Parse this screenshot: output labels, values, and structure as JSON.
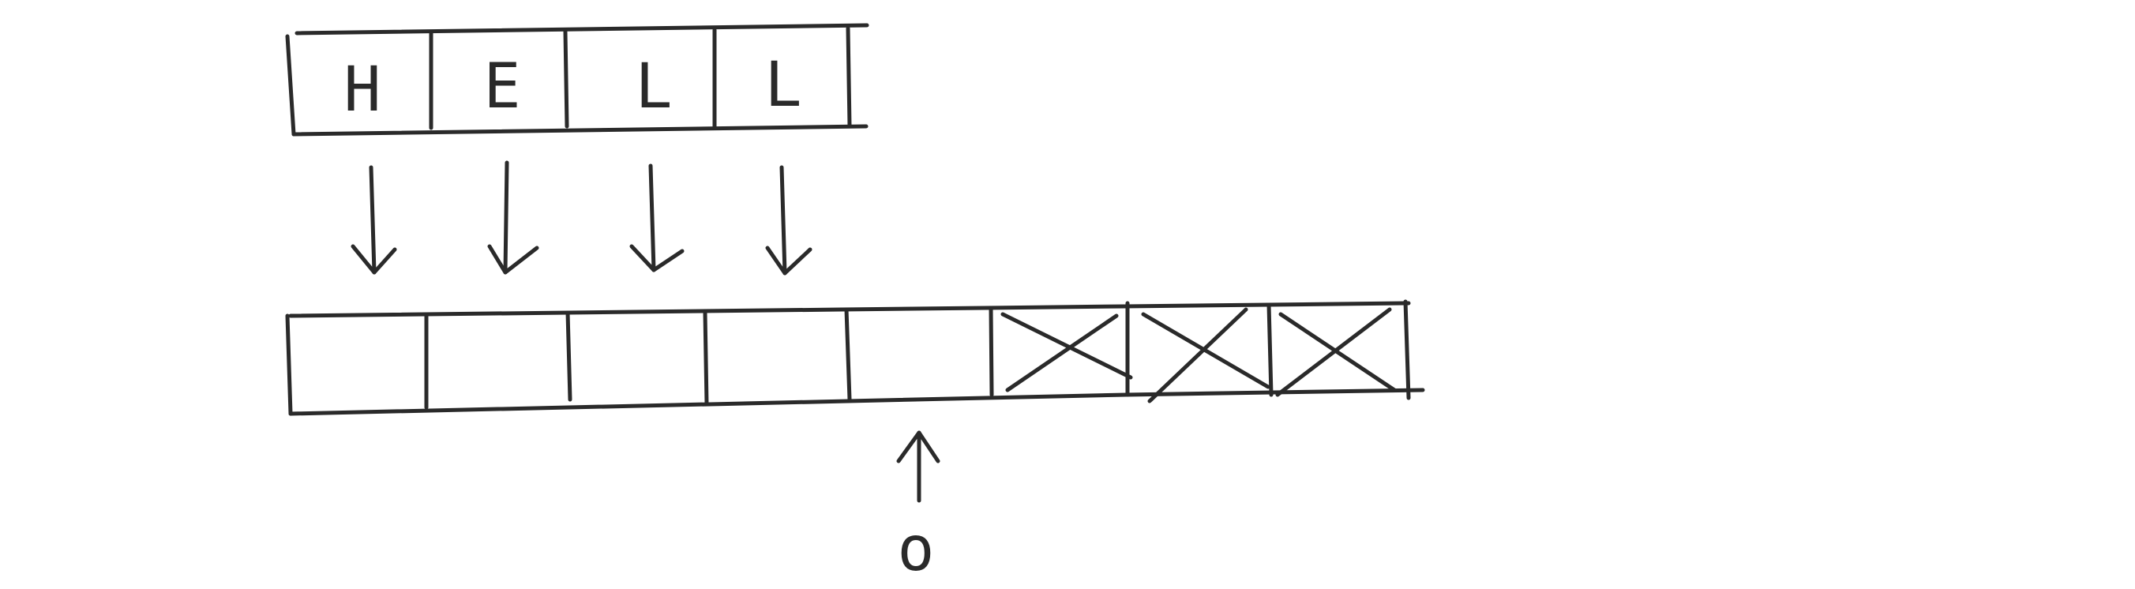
{
  "source": {
    "cells": [
      "H",
      "E",
      "L",
      "L"
    ]
  },
  "destination": {
    "cells": [
      {
        "state": "empty"
      },
      {
        "state": "empty"
      },
      {
        "state": "empty"
      },
      {
        "state": "empty"
      },
      {
        "state": "empty"
      },
      {
        "state": "crossed"
      },
      {
        "state": "crossed"
      },
      {
        "state": "crossed"
      }
    ]
  },
  "pointer": {
    "label": "o"
  }
}
